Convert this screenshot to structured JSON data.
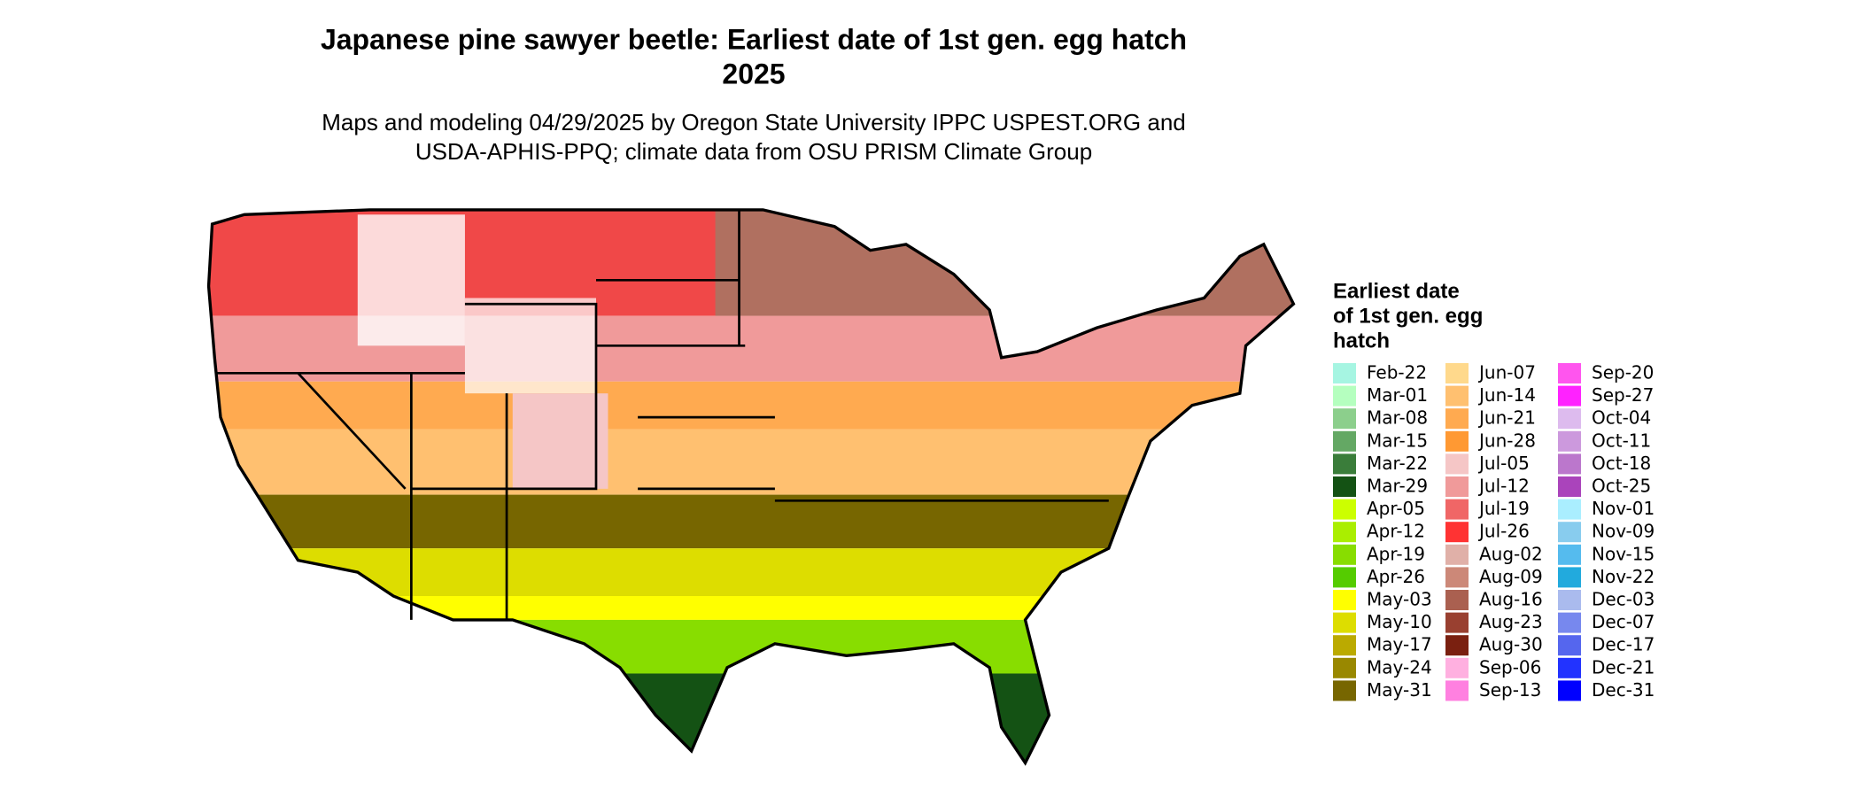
{
  "title": [
    "Japanese pine sawyer beetle: Earliest date of 1st gen. egg hatch",
    "2025"
  ],
  "subtitle": [
    "Maps and modeling 04/29/2025 by Oregon State University IPPC USPEST.ORG and",
    "USDA-APHIS-PPQ; climate data from OSU PRISM Climate Group"
  ],
  "legend": {
    "title": [
      "Earliest date",
      "of 1st gen. egg",
      "hatch"
    ],
    "items": [
      {
        "label": "Feb-22",
        "color": "#a6f5e2"
      },
      {
        "label": "Mar-01",
        "color": "#b5ffbf"
      },
      {
        "label": "Mar-08",
        "color": "#8ccf8c"
      },
      {
        "label": "Mar-15",
        "color": "#64a864"
      },
      {
        "label": "Mar-22",
        "color": "#3a7d3a"
      },
      {
        "label": "Mar-29",
        "color": "#145214"
      },
      {
        "label": "Apr-05",
        "color": "#ccff00"
      },
      {
        "label": "Apr-12",
        "color": "#aaee00"
      },
      {
        "label": "Apr-19",
        "color": "#88dd00"
      },
      {
        "label": "Apr-26",
        "color": "#55cc00"
      },
      {
        "label": "May-03",
        "color": "#ffff00"
      },
      {
        "label": "May-10",
        "color": "#dddd00"
      },
      {
        "label": "May-17",
        "color": "#bbaa00"
      },
      {
        "label": "May-24",
        "color": "#998800"
      },
      {
        "label": "May-31",
        "color": "#776600"
      },
      {
        "label": "Jun-07",
        "color": "#ffd98c"
      },
      {
        "label": "Jun-14",
        "color": "#ffc070"
      },
      {
        "label": "Jun-21",
        "color": "#ffaa50"
      },
      {
        "label": "Jun-28",
        "color": "#ff9933"
      },
      {
        "label": "Jul-05",
        "color": "#f5c6c6"
      },
      {
        "label": "Jul-12",
        "color": "#f09a9a"
      },
      {
        "label": "Jul-19",
        "color": "#f06666"
      },
      {
        "label": "Jul-26",
        "color": "#ff3333"
      },
      {
        "label": "Aug-02",
        "color": "#e0b0a8"
      },
      {
        "label": "Aug-09",
        "color": "#cc8878"
      },
      {
        "label": "Aug-16",
        "color": "#aa6050"
      },
      {
        "label": "Aug-23",
        "color": "#994030"
      },
      {
        "label": "Aug-30",
        "color": "#7a2010"
      },
      {
        "label": "Sep-06",
        "color": "#ffb0e0"
      },
      {
        "label": "Sep-13",
        "color": "#ff80e0"
      },
      {
        "label": "Sep-20",
        "color": "#ff55ee"
      },
      {
        "label": "Sep-27",
        "color": "#ff22ff"
      },
      {
        "label": "Oct-04",
        "color": "#ddbbee"
      },
      {
        "label": "Oct-11",
        "color": "#cc99dd"
      },
      {
        "label": "Oct-18",
        "color": "#bb77cc"
      },
      {
        "label": "Oct-25",
        "color": "#aa44bb"
      },
      {
        "label": "Nov-01",
        "color": "#aaeeff"
      },
      {
        "label": "Nov-09",
        "color": "#88ccee"
      },
      {
        "label": "Nov-15",
        "color": "#55bbee"
      },
      {
        "label": "Nov-22",
        "color": "#22aadd"
      },
      {
        "label": "Dec-03",
        "color": "#aabbee"
      },
      {
        "label": "Dec-07",
        "color": "#7788ee"
      },
      {
        "label": "Dec-17",
        "color": "#5566ee"
      },
      {
        "label": "Dec-21",
        "color": "#2233ff"
      },
      {
        "label": "Dec-31",
        "color": "#0000ff"
      }
    ]
  }
}
